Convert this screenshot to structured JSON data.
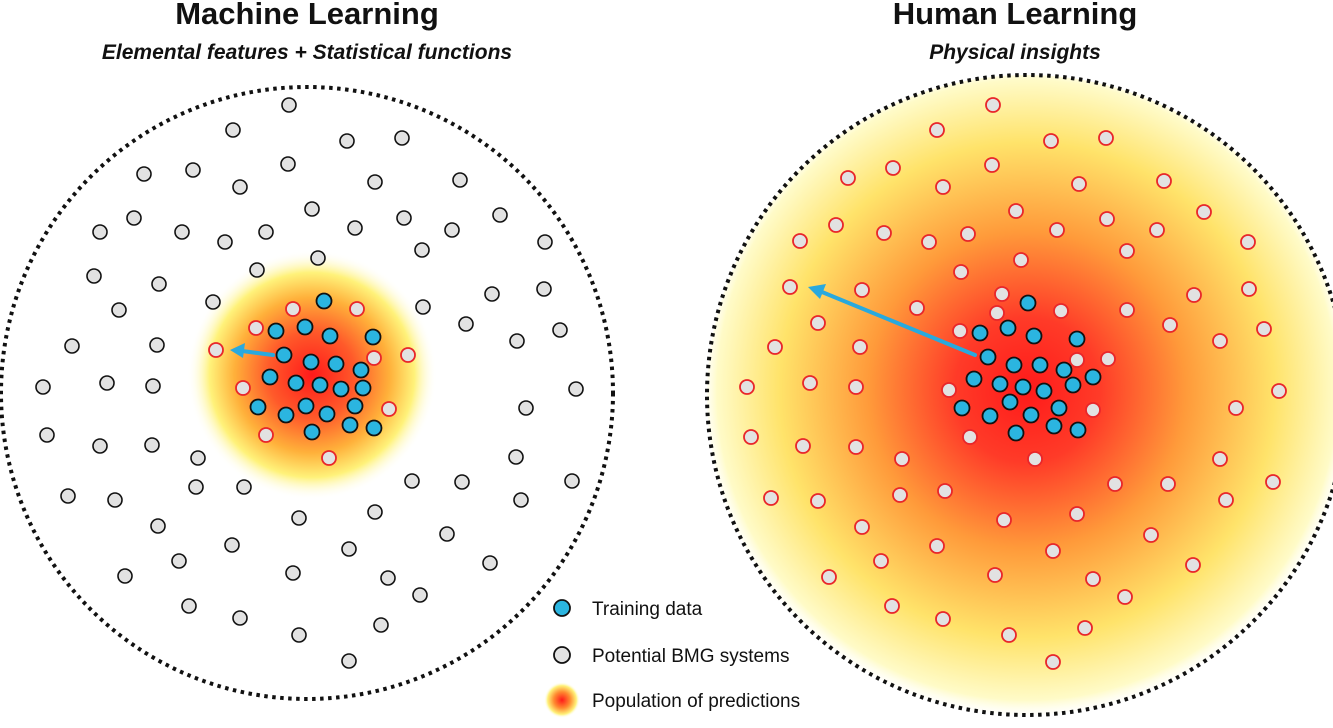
{
  "panels": [
    {
      "title": "Machine Learning",
      "subtitle": "Elemental features + Statistical functions"
    },
    {
      "title": "Human Learning",
      "subtitle": "Physical insights"
    }
  ],
  "legend": {
    "training": "Training data",
    "potential": "Potential BMG systems",
    "predictions": "Population of predictions"
  },
  "colors": {
    "training_fill": "#2bb5e0",
    "potential_fill": "#e2e2e2",
    "prediction_ring": "#e8262a",
    "arrow": "#29a9de",
    "glow_core": "#ff2020",
    "glow_edge": "#fff9a0"
  }
}
